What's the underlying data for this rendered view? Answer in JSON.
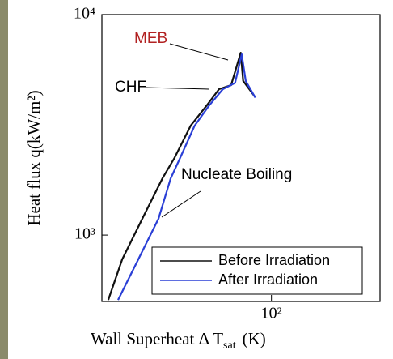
{
  "chart_data": {
    "type": "line",
    "ylabel": "Heat flux q(kW/m²)",
    "xlabel": "Wall Superheat Δ T",
    "xlabel_sub": "sat",
    "xlabel_unit": "(K)",
    "xscale": "log",
    "yscale": "log",
    "xlim": [
      18,
      300
    ],
    "ylim": [
      500,
      10000
    ],
    "xticks": [
      {
        "value": 100,
        "label": "10²"
      }
    ],
    "yticks": [
      {
        "value": 1000,
        "label": "10³"
      },
      {
        "value": 10000,
        "label": "10⁴"
      }
    ],
    "legend": "lower right",
    "annotations": [
      {
        "text": "MEB",
        "color": "#b22222"
      },
      {
        "text": "CHF",
        "color": "#000000"
      },
      {
        "text": "Nucleate Boiling",
        "color": "#000000"
      }
    ],
    "series": [
      {
        "name": "Before Irradiation",
        "color": "#111111",
        "x": [
          19.2,
          22.1,
          27.1,
          33.2,
          37.5,
          44.2,
          52.0,
          58.9,
          66.5,
          73.3,
          75.1,
          84.9
        ],
        "values": [
          508,
          776,
          1186,
          1808,
          2236,
          3135,
          3873,
          4590,
          4786,
          6714,
          5000,
          4217
        ]
      },
      {
        "name": "After Irradiation",
        "color": "#2a3fd6",
        "x": [
          21.2,
          26.0,
          31.9,
          36.1,
          39.7,
          46.0,
          53.3,
          61.2,
          69.2,
          74.0,
          77.1,
          84.9
        ],
        "values": [
          508,
          776,
          1186,
          1808,
          2236,
          3135,
          3873,
          4590,
          4900,
          6600,
          5000,
          4200
        ]
      }
    ]
  }
}
